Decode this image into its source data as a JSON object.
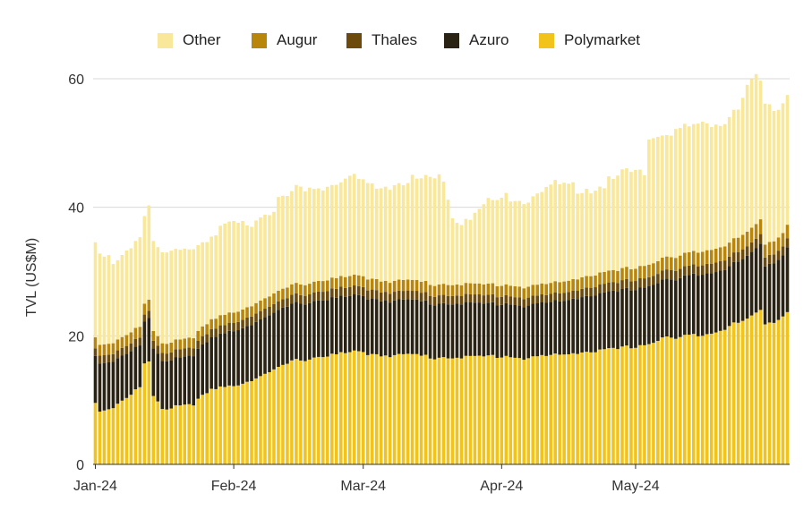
{
  "chart_data": {
    "type": "bar",
    "stacked": true,
    "title": "",
    "xlabel": "",
    "ylabel": "TVL (US$M)",
    "ylim": [
      0,
      60
    ],
    "yticks": [
      "0",
      "20",
      "40",
      "60"
    ],
    "xtick_labels": [
      {
        "label": "Jan-24",
        "day_index": 0
      },
      {
        "label": "Feb-24",
        "day_index": 31
      },
      {
        "label": "Mar-24",
        "day_index": 60
      },
      {
        "label": "Apr-24",
        "day_index": 91
      },
      {
        "label": "May-24",
        "day_index": 121
      }
    ],
    "legend_position": "top-center",
    "grid": "horizontal",
    "num_days": 156,
    "legend": [
      {
        "name": "Other",
        "color": "#f9e79a"
      },
      {
        "name": "Augur",
        "color": "#b7860b"
      },
      {
        "name": "Thales",
        "color": "#6b4a0c"
      },
      {
        "name": "Azuro",
        "color": "#2a2212"
      },
      {
        "name": "Polymarket",
        "color": "#f2c31b"
      }
    ],
    "series": [
      {
        "name": "Polymarket",
        "color": "#f2c31b",
        "knots": [
          [
            0,
            9.5
          ],
          [
            1,
            8.3
          ],
          [
            4,
            9
          ],
          [
            8,
            11
          ],
          [
            10,
            12
          ],
          [
            11,
            15.5
          ],
          [
            12,
            15.8
          ],
          [
            13,
            10.5
          ],
          [
            14,
            9.5
          ],
          [
            15,
            8.5
          ],
          [
            18,
            9.2
          ],
          [
            22,
            9.5
          ],
          [
            24,
            10.5
          ],
          [
            26,
            11.5
          ],
          [
            28,
            11.8
          ],
          [
            32,
            12.5
          ],
          [
            36,
            13.5
          ],
          [
            40,
            14.5
          ],
          [
            44,
            16
          ],
          [
            48,
            16.5
          ],
          [
            52,
            17
          ],
          [
            56,
            17.2
          ],
          [
            58,
            17.5
          ],
          [
            60,
            17.3
          ],
          [
            66,
            17
          ],
          [
            72,
            17
          ],
          [
            76,
            16.6
          ],
          [
            80,
            16.8
          ],
          [
            84,
            16.6
          ],
          [
            88,
            16.8
          ],
          [
            92,
            16.9
          ],
          [
            96,
            16.5
          ],
          [
            100,
            16.8
          ],
          [
            104,
            17
          ],
          [
            108,
            17.5
          ],
          [
            112,
            17.6
          ],
          [
            116,
            17.8
          ],
          [
            120,
            18.3
          ],
          [
            124,
            18.8
          ],
          [
            128,
            19.8
          ],
          [
            130,
            19.5
          ],
          [
            134,
            20.2
          ],
          [
            138,
            20.5
          ],
          [
            142,
            21.5
          ],
          [
            146,
            22.5
          ],
          [
            148,
            23.5
          ],
          [
            149,
            24
          ],
          [
            150,
            22
          ],
          [
            152,
            22.2
          ],
          [
            154,
            23.3
          ],
          [
            155,
            23.7
          ]
        ]
      },
      {
        "name": "Azuro",
        "color": "#2a2212",
        "knots": [
          [
            0,
            7.3
          ],
          [
            1,
            7.5
          ],
          [
            4,
            7.2
          ],
          [
            8,
            6.8
          ],
          [
            10,
            6.5
          ],
          [
            11,
            6.5
          ],
          [
            12,
            6.8
          ],
          [
            13,
            7.4
          ],
          [
            15,
            7.5
          ],
          [
            20,
            7.5
          ],
          [
            26,
            8
          ],
          [
            30,
            8.5
          ],
          [
            36,
            8.8
          ],
          [
            42,
            8.9
          ],
          [
            48,
            8.8
          ],
          [
            54,
            8.8
          ],
          [
            60,
            8.7
          ],
          [
            66,
            8.5
          ],
          [
            72,
            8.5
          ],
          [
            76,
            8.4
          ],
          [
            82,
            8.4
          ],
          [
            88,
            8.2
          ],
          [
            96,
            8.2
          ],
          [
            104,
            8.3
          ],
          [
            112,
            8.8
          ],
          [
            120,
            9
          ],
          [
            128,
            9
          ],
          [
            136,
            9.5
          ],
          [
            142,
            9.3
          ],
          [
            148,
            10
          ],
          [
            149,
            10.3
          ],
          [
            150,
            9
          ],
          [
            154,
            9.5
          ],
          [
            155,
            10.1
          ]
        ]
      },
      {
        "name": "Thales",
        "color": "#6b4a0c",
        "knots": [
          [
            0,
            1.2
          ],
          [
            10,
            1.2
          ],
          [
            11,
            1.1
          ],
          [
            12,
            1.1
          ],
          [
            13,
            1.2
          ],
          [
            60,
            1.4
          ],
          [
            100,
            1.2
          ],
          [
            120,
            1.4
          ],
          [
            149,
            1.5
          ],
          [
            150,
            1.4
          ],
          [
            155,
            1.4
          ]
        ]
      },
      {
        "name": "Augur",
        "color": "#b7860b",
        "knots": [
          [
            0,
            1.7
          ],
          [
            10,
            1.7
          ],
          [
            11,
            1.7
          ],
          [
            12,
            1.7
          ],
          [
            13,
            1.5
          ],
          [
            30,
            1.6
          ],
          [
            60,
            1.7
          ],
          [
            100,
            1.7
          ],
          [
            120,
            1.9
          ],
          [
            149,
            2.3
          ],
          [
            150,
            2
          ],
          [
            155,
            2.1
          ]
        ]
      },
      {
        "name": "Other",
        "color": "#f9e79a",
        "knots": [
          [
            0,
            15.2
          ],
          [
            1,
            14.5
          ],
          [
            3,
            13.5
          ],
          [
            6,
            13.5
          ],
          [
            9,
            14
          ],
          [
            10,
            14.5
          ],
          [
            11,
            14.5
          ],
          [
            12,
            14.3
          ],
          [
            13,
            14
          ],
          [
            15,
            14
          ],
          [
            18,
            14.5
          ],
          [
            22,
            14.5
          ],
          [
            26,
            13
          ],
          [
            30,
            14
          ],
          [
            34,
            13.5
          ],
          [
            38,
            13.5
          ],
          [
            42,
            14.5
          ],
          [
            46,
            15
          ],
          [
            50,
            15
          ],
          [
            54,
            15.5
          ],
          [
            58,
            15.5
          ],
          [
            60,
            15.3
          ],
          [
            66,
            15.2
          ],
          [
            70,
            15.8
          ],
          [
            72,
            16.2
          ],
          [
            76,
            17
          ],
          [
            78,
            16.5
          ],
          [
            80,
            11
          ],
          [
            82,
            10.5
          ],
          [
            84,
            11
          ],
          [
            86,
            12
          ],
          [
            88,
            13
          ],
          [
            90,
            13.5
          ],
          [
            92,
            14
          ],
          [
            94,
            14.5
          ],
          [
            96,
            14
          ],
          [
            100,
            15
          ],
          [
            104,
            15.5
          ],
          [
            106,
            15.3
          ],
          [
            108,
            14.5
          ],
          [
            112,
            14
          ],
          [
            116,
            14.5
          ],
          [
            118,
            15.5
          ],
          [
            120,
            15.5
          ],
          [
            123,
            15
          ],
          [
            124,
            20.5
          ],
          [
            125,
            20
          ],
          [
            127,
            20
          ],
          [
            132,
            20
          ],
          [
            136,
            20
          ],
          [
            140,
            20
          ],
          [
            144,
            21
          ],
          [
            146,
            22.5
          ],
          [
            148,
            23
          ],
          [
            149,
            21.5
          ],
          [
            150,
            21.5
          ],
          [
            152,
            20.5
          ],
          [
            154,
            21
          ],
          [
            155,
            21.2
          ]
        ]
      }
    ]
  }
}
